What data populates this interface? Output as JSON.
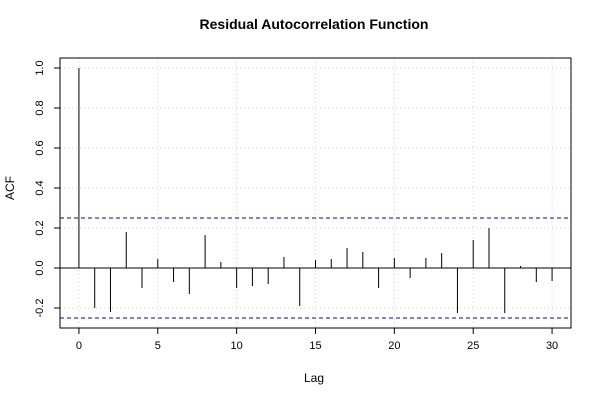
{
  "chart_data": {
    "type": "bar",
    "title": "Residual Autocorrelation Function",
    "xlabel": "Lag",
    "ylabel": "ACF",
    "xlim": [
      -1.2,
      31.2
    ],
    "ylim": [
      -0.3,
      1.05
    ],
    "x_ticks": [
      0,
      5,
      10,
      15,
      20,
      25,
      30
    ],
    "x_tick_labels": [
      "0",
      "5",
      "10",
      "15",
      "20",
      "25",
      "30"
    ],
    "y_ticks": [
      -0.2,
      0.0,
      0.2,
      0.4,
      0.6,
      0.8,
      1.0
    ],
    "y_tick_labels": [
      "-0.2",
      "0.0",
      "0.2",
      "0.4",
      "0.6",
      "0.8",
      "1.0"
    ],
    "grid": true,
    "lags": [
      0,
      1,
      2,
      3,
      4,
      5,
      6,
      7,
      8,
      9,
      10,
      11,
      12,
      13,
      14,
      15,
      16,
      17,
      18,
      19,
      20,
      21,
      22,
      23,
      24,
      25,
      26,
      27,
      28,
      29,
      30
    ],
    "values": [
      1.0,
      -0.2,
      -0.22,
      0.18,
      -0.1,
      0.045,
      -0.07,
      -0.13,
      0.165,
      0.03,
      -0.1,
      -0.09,
      -0.08,
      0.055,
      -0.19,
      0.04,
      0.045,
      0.1,
      0.08,
      -0.1,
      0.05,
      -0.05,
      0.05,
      0.075,
      -0.225,
      0.14,
      0.2,
      -0.225,
      0.01,
      -0.07,
      -0.065
    ],
    "confidence_bound": 0.25,
    "colors": {
      "bars": "#000000",
      "confidence": "#0000cc",
      "grid": "#d3d3d3",
      "frame": "#000000"
    }
  }
}
